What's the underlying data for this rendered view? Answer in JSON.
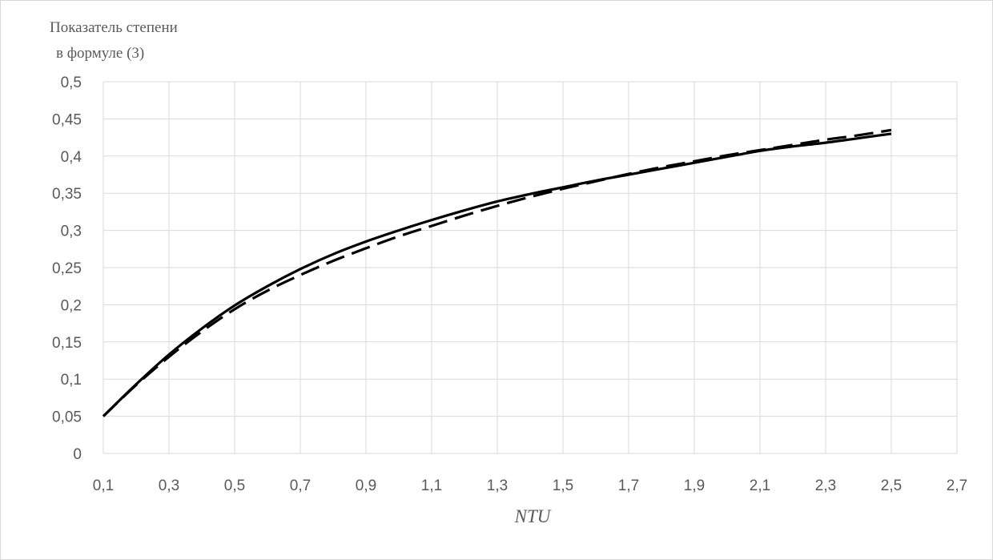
{
  "chart_data": {
    "type": "line",
    "title": "",
    "xlabel": "NTU",
    "ylabel_lines": [
      "Показатель степени",
      "в формуле (3)"
    ],
    "xlim": [
      0.1,
      2.7
    ],
    "ylim": [
      0,
      0.5
    ],
    "x_ticks": [
      "0,1",
      "0,3",
      "0,5",
      "0,7",
      "0,9",
      "1,1",
      "1,3",
      "1,5",
      "1,7",
      "1,9",
      "2,1",
      "2,3",
      "2,5",
      "2,7"
    ],
    "y_ticks": [
      "0",
      "0,05",
      "0,1",
      "0,15",
      "0,2",
      "0,25",
      "0,3",
      "0,35",
      "0,4",
      "0,45",
      "0,5"
    ],
    "grid": true,
    "legend": "none",
    "series": [
      {
        "style": "solid",
        "color": "#000000",
        "x": [
          0.1,
          0.2,
          0.3,
          0.4,
          0.5,
          0.6,
          0.7,
          0.8,
          0.9,
          1.0,
          1.1,
          1.2,
          1.3,
          1.4,
          1.5,
          1.6,
          1.7,
          1.8,
          1.9,
          2.0,
          2.1,
          2.2,
          2.3,
          2.4,
          2.5
        ],
        "y": [
          0.05,
          0.093,
          0.133,
          0.168,
          0.199,
          0.225,
          0.248,
          0.268,
          0.285,
          0.3,
          0.314,
          0.327,
          0.339,
          0.349,
          0.358,
          0.367,
          0.375,
          0.383,
          0.391,
          0.399,
          0.407,
          0.413,
          0.418,
          0.424,
          0.43
        ]
      },
      {
        "style": "dashed",
        "color": "#000000",
        "x": [
          0.1,
          0.2,
          0.3,
          0.4,
          0.5,
          0.6,
          0.7,
          0.8,
          0.9,
          1.0,
          1.1,
          1.2,
          1.3,
          1.4,
          1.5,
          1.6,
          1.7,
          1.8,
          1.9,
          2.0,
          2.1,
          2.2,
          2.3,
          2.4,
          2.5
        ],
        "y": [
          0.05,
          0.092,
          0.13,
          0.164,
          0.194,
          0.219,
          0.24,
          0.259,
          0.276,
          0.292,
          0.306,
          0.32,
          0.333,
          0.345,
          0.356,
          0.366,
          0.376,
          0.385,
          0.393,
          0.401,
          0.408,
          0.415,
          0.422,
          0.428,
          0.435
        ]
      }
    ]
  }
}
